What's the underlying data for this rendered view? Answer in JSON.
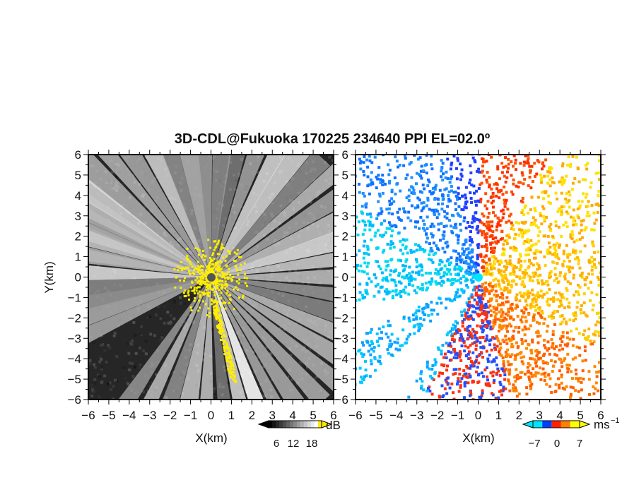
{
  "figure": {
    "title": "3D-CDL@Fukuoka 170225 234640 PPI EL=02.0º"
  },
  "chart_data": [
    {
      "type": "heatmap",
      "name": "ppi-snr",
      "xlabel": "X(km)",
      "ylabel": "Y(km)",
      "xlim": [
        -6,
        6
      ],
      "ylim": [
        -6,
        6
      ],
      "x_ticks": [
        "−6",
        "−5",
        "−4",
        "−3",
        "−2",
        "−1",
        "0",
        "1",
        "2",
        "3",
        "4",
        "5",
        "6"
      ],
      "y_ticks": [
        "6",
        "5",
        "4",
        "3",
        "2",
        "1",
        "0",
        "−1",
        "−2",
        "−3",
        "−4",
        "−5",
        "−6"
      ],
      "colorbar": {
        "ticks": [
          "6",
          "12",
          "18"
        ],
        "unit": "dB",
        "colors": [
          "#000000",
          "#ffffff",
          "#ffea00"
        ]
      },
      "beam_azimuths_deg": [
        -80,
        -70,
        -62,
        -55,
        -48,
        -40,
        -33,
        -25,
        -18,
        -10,
        -3,
        5,
        12,
        20,
        28,
        35,
        43,
        50,
        58,
        66,
        74,
        82,
        90,
        98,
        106,
        114,
        122,
        130,
        138,
        146,
        153,
        160,
        167,
        174,
        182,
        190,
        198,
        206,
        214,
        245,
        252,
        258,
        265,
        272,
        280,
        288,
        295,
        300
      ]
    },
    {
      "type": "heatmap",
      "name": "ppi-velocity",
      "xlabel": "X(km)",
      "xlim": [
        -6,
        6
      ],
      "ylim": [
        -6,
        6
      ],
      "x_ticks": [
        "−6",
        "−5",
        "−4",
        "−3",
        "−2",
        "−1",
        "0",
        "1",
        "2",
        "3",
        "4",
        "5",
        "6"
      ],
      "y_ticks": [
        "6",
        "5",
        "4",
        "3",
        "2",
        "1",
        "0",
        "−1",
        "−2",
        "−3",
        "−4",
        "−5",
        "−6"
      ],
      "colorbar": {
        "ticks": [
          "−7",
          "0",
          "7"
        ],
        "unit": "ms",
        "unit_exp": "−1",
        "colors": [
          "#00e5ff",
          "#0040ff",
          "#ff2000",
          "#ff8000",
          "#ffff00"
        ]
      }
    }
  ]
}
